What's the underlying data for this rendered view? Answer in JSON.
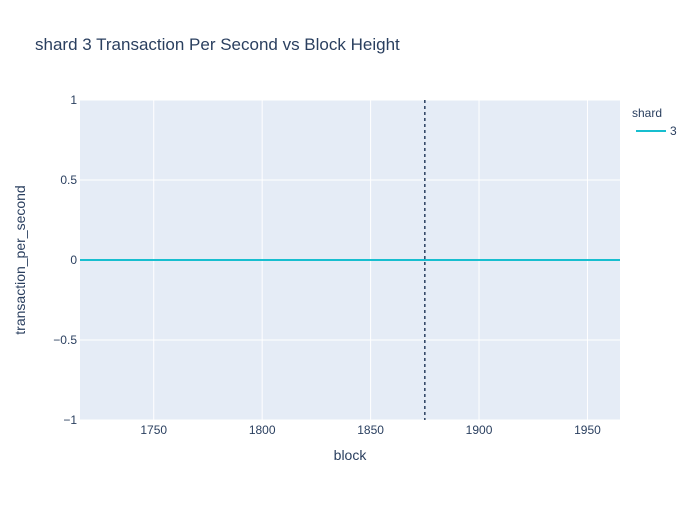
{
  "chart_data": {
    "type": "line",
    "title": "shard 3 Transaction Per Second vs Block Height",
    "xlabel": "block",
    "ylabel": "transaction_per_second",
    "xlim": [
      1716,
      1965
    ],
    "ylim": [
      -1,
      1
    ],
    "x_ticks": [
      1750,
      1800,
      1850,
      1900,
      1950
    ],
    "x_tick_labels": [
      "1750",
      "1800",
      "1850",
      "1900",
      "1950"
    ],
    "y_ticks": [
      -1,
      -0.5,
      0,
      0.5,
      1
    ],
    "y_tick_labels": [
      "−1",
      "−0.5",
      "0",
      "0.5",
      "1"
    ],
    "grid": true,
    "legend": {
      "title": "shard",
      "placement": "top-right"
    },
    "series": [
      {
        "name": "3",
        "color": "#17becf",
        "x": [
          1716,
          1965
        ],
        "y": [
          0,
          0
        ]
      }
    ],
    "reference_line": {
      "orientation": "vertical",
      "x": 1875,
      "style": "dotted",
      "color": "#2a3f5f"
    },
    "colors": {
      "plot_bg": "#e5ecf6",
      "grid": "#ffffff",
      "text": "#2a3f5f"
    }
  }
}
